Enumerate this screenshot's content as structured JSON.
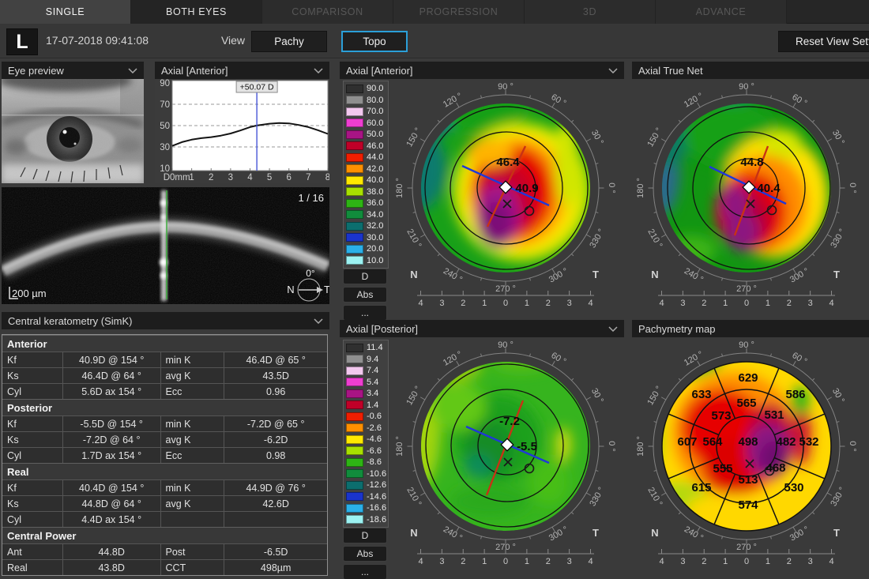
{
  "tabs": [
    {
      "label": "SINGLE",
      "state": "active"
    },
    {
      "label": "BOTH EYES",
      "state": "idle"
    },
    {
      "label": "COMPARISON",
      "state": "disabled"
    },
    {
      "label": "PROGRESSION",
      "state": "disabled"
    },
    {
      "label": "3D",
      "state": "disabled"
    },
    {
      "label": "ADVANCE",
      "state": "disabled"
    }
  ],
  "toolbar": {
    "eye": "L",
    "datetime": "17-07-2018 09:41:08",
    "view_label": "View",
    "pachy": "Pachy",
    "topo": "Topo",
    "reset": "Reset View Sett"
  },
  "eye_preview": {
    "title": "Eye preview"
  },
  "graph": {
    "title": "Axial [Anterior]"
  },
  "oct": {
    "counter": "1 / 16",
    "scale": "200 µm",
    "angle": "0°",
    "n": "N",
    "t": "T"
  },
  "simk": {
    "title": "Central keratometry (SimK)",
    "sections": [
      {
        "title": "Anterior",
        "rows": [
          [
            "Kf",
            "40.9D @ 154 °",
            "min K",
            "46.4D @ 65 °"
          ],
          [
            "Ks",
            "46.4D @ 64 °",
            "avg K",
            "43.5D"
          ],
          [
            "Cyl",
            "5.6D ax 154 °",
            "Ecc",
            "0.96"
          ]
        ]
      },
      {
        "title": "Posterior",
        "rows": [
          [
            "Kf",
            "-5.5D @ 154 °",
            "min K",
            "-7.2D @ 65 °"
          ],
          [
            "Ks",
            "-7.2D @ 64 °",
            "avg K",
            "-6.2D"
          ],
          [
            "Cyl",
            "1.7D ax 154 °",
            "Ecc",
            "0.98"
          ]
        ]
      },
      {
        "title": "Real",
        "rows": [
          [
            "Kf",
            "40.4D @ 154 °",
            "min K",
            "44.9D @ 76 °"
          ],
          [
            "Ks",
            "44.8D @ 64 °",
            "avg K",
            "42.6D"
          ],
          [
            "Cyl",
            "4.4D ax 154 °",
            "",
            ""
          ]
        ]
      },
      {
        "title": "Central Power",
        "rows": [
          [
            "Ant",
            "44.8D",
            "Post",
            "-6.5D"
          ],
          [
            "Real",
            "43.8D",
            "CCT",
            "498µm"
          ]
        ]
      }
    ]
  },
  "maps": {
    "n": "N",
    "t": "T",
    "buttons": [
      "D",
      "Abs",
      "..."
    ],
    "ruler": [
      "4",
      "3",
      "2",
      "1",
      "0",
      "1",
      "2",
      "3",
      "4"
    ],
    "angle_labels": [
      {
        "t": "90 °",
        "a": 90
      },
      {
        "t": "120 °",
        "a": 120
      },
      {
        "t": "150 °",
        "a": 150
      },
      {
        "t": "180 °",
        "a": 180
      },
      {
        "t": "210 °",
        "a": 210
      },
      {
        "t": "240 °",
        "a": 240
      },
      {
        "t": "270 °",
        "a": 270
      },
      {
        "t": "300 °",
        "a": 300
      },
      {
        "t": "330 °",
        "a": 330
      },
      {
        "t": "0 °",
        "a": 0
      },
      {
        "t": "30 °",
        "a": 30
      },
      {
        "t": "60 °",
        "a": 60
      }
    ],
    "anterior": {
      "title": "Axial [Anterior]",
      "scale": [
        {
          "v": "90.0",
          "c": "#2f2f2f"
        },
        {
          "v": "80.0",
          "c": "#8f8f8f"
        },
        {
          "v": "70.0",
          "c": "#f2c8ee"
        },
        {
          "v": "60.0",
          "c": "#ee3ed0"
        },
        {
          "v": "50.0",
          "c": "#a81484"
        },
        {
          "v": "46.0",
          "c": "#c00028"
        },
        {
          "v": "44.0",
          "c": "#f01e00"
        },
        {
          "v": "42.0",
          "c": "#ff9000"
        },
        {
          "v": "40.0",
          "c": "#ffe800"
        },
        {
          "v": "38.0",
          "c": "#a8e000"
        },
        {
          "v": "36.0",
          "c": "#2eb414"
        },
        {
          "v": "34.0",
          "c": "#118c3c"
        },
        {
          "v": "32.0",
          "c": "#0c6e6e"
        },
        {
          "v": "30.0",
          "c": "#1a34cc"
        },
        {
          "v": "20.0",
          "c": "#2ab0e8"
        },
        {
          "v": "10.0",
          "c": "#9cf2f2"
        }
      ],
      "values": [
        {
          "t": "46.4",
          "x": 173,
          "y": 142
        },
        {
          "t": "40.9",
          "x": 197,
          "y": 175
        }
      ]
    },
    "truenet": {
      "title": "Axial True Net",
      "values": [
        {
          "t": "44.8",
          "x": 177,
          "y": 142
        },
        {
          "t": "40.4",
          "x": 198,
          "y": 175
        }
      ]
    },
    "posterior": {
      "title": "Axial [Posterior]",
      "scale": [
        {
          "v": "11.4",
          "c": "#2f2f2f"
        },
        {
          "v": "9.4",
          "c": "#8f8f8f"
        },
        {
          "v": "7.4",
          "c": "#f2c8ee"
        },
        {
          "v": "5.4",
          "c": "#ee3ed0"
        },
        {
          "v": "3.4",
          "c": "#a81484"
        },
        {
          "v": "1.4",
          "c": "#c00028"
        },
        {
          "v": "-0.6",
          "c": "#f01e00"
        },
        {
          "v": "-2.6",
          "c": "#ff9000"
        },
        {
          "v": "-4.6",
          "c": "#ffe800"
        },
        {
          "v": "-6.6",
          "c": "#a8e000"
        },
        {
          "v": "-8.6",
          "c": "#2eb414"
        },
        {
          "v": "-10.6",
          "c": "#118c3c"
        },
        {
          "v": "-12.6",
          "c": "#0c6e6e"
        },
        {
          "v": "-14.6",
          "c": "#1a34cc"
        },
        {
          "v": "-16.6",
          "c": "#2ab0e8"
        },
        {
          "v": "-18.6",
          "c": "#9cf2f2"
        }
      ],
      "values": [
        {
          "t": "-7.2",
          "x": 175,
          "y": 143
        },
        {
          "t": "-5.5",
          "x": 197,
          "y": 175
        }
      ]
    },
    "pachymetry": {
      "title": "Pachymetry map",
      "values": [
        {
          "t": "498",
          "x": 172,
          "y": 169
        },
        {
          "t": "565",
          "x": 170,
          "y": 120
        },
        {
          "t": "531",
          "x": 205,
          "y": 135
        },
        {
          "t": "482",
          "x": 220,
          "y": 169
        },
        {
          "t": "468",
          "x": 207,
          "y": 202
        },
        {
          "t": "513",
          "x": 172,
          "y": 217
        },
        {
          "t": "555",
          "x": 140,
          "y": 203
        },
        {
          "t": "564",
          "x": 127,
          "y": 169
        },
        {
          "t": "573",
          "x": 138,
          "y": 136
        },
        {
          "t": "629",
          "x": 172,
          "y": 88
        },
        {
          "t": "586",
          "x": 232,
          "y": 109
        },
        {
          "t": "532",
          "x": 249,
          "y": 169
        },
        {
          "t": "530",
          "x": 230,
          "y": 227
        },
        {
          "t": "574",
          "x": 172,
          "y": 249
        },
        {
          "t": "615",
          "x": 113,
          "y": 227
        },
        {
          "t": "607",
          "x": 95,
          "y": 169
        },
        {
          "t": "633",
          "x": 113,
          "y": 109
        }
      ]
    }
  },
  "chart_data": [
    {
      "type": "line",
      "title": "Axial [Anterior]",
      "x": [
        0,
        0.5,
        1,
        1.5,
        2,
        2.5,
        3,
        3.5,
        4,
        4.35,
        5,
        5.5,
        6,
        6.5,
        7,
        7.5,
        8
      ],
      "y": [
        31,
        34.5,
        36.8,
        38.2,
        39.2,
        40.6,
        42.6,
        45.4,
        48.6,
        50.07,
        51.8,
        52.4,
        52.1,
        50.6,
        48.6,
        45.6,
        42.2
      ],
      "xlabel": "mm",
      "ylabel": "D",
      "x_ticks": [
        "0mm",
        "1",
        "2",
        "3",
        "4",
        "5",
        "6",
        "7",
        "8"
      ],
      "y_ticks": [
        90,
        70,
        50,
        30,
        10
      ],
      "ylim": [
        10,
        90
      ],
      "cursor_x": 4.35,
      "cursor_label": "+50.07 D",
      "grid": "dashed-horizontal"
    },
    {
      "type": "heatmap",
      "title": "Axial [Anterior]",
      "unit": "D",
      "labeled_points": [
        {
          "label": 46.4
        },
        {
          "label": 40.9
        }
      ],
      "scale_ticks": [
        90,
        80,
        70,
        60,
        50,
        46,
        44,
        42,
        40,
        38,
        36,
        34,
        32,
        30,
        20,
        10
      ]
    },
    {
      "type": "heatmap",
      "title": "Axial True Net",
      "unit": "D",
      "labeled_points": [
        {
          "label": 44.8
        },
        {
          "label": 40.4
        }
      ]
    },
    {
      "type": "heatmap",
      "title": "Axial [Posterior]",
      "unit": "D",
      "labeled_points": [
        {
          "label": -7.2
        },
        {
          "label": -5.5
        }
      ],
      "scale_ticks": [
        11.4,
        9.4,
        7.4,
        5.4,
        3.4,
        1.4,
        -0.6,
        -2.6,
        -4.6,
        -6.6,
        -8.6,
        -10.6,
        -12.6,
        -14.6,
        -16.6,
        -18.6
      ]
    },
    {
      "type": "heatmap",
      "title": "Pachymetry map",
      "unit": "µm",
      "center": 498,
      "inner_ring": [
        565,
        531,
        482,
        468,
        513,
        555,
        564,
        573
      ],
      "outer_ring": [
        629,
        586,
        532,
        530,
        574,
        615,
        607,
        633
      ]
    }
  ]
}
